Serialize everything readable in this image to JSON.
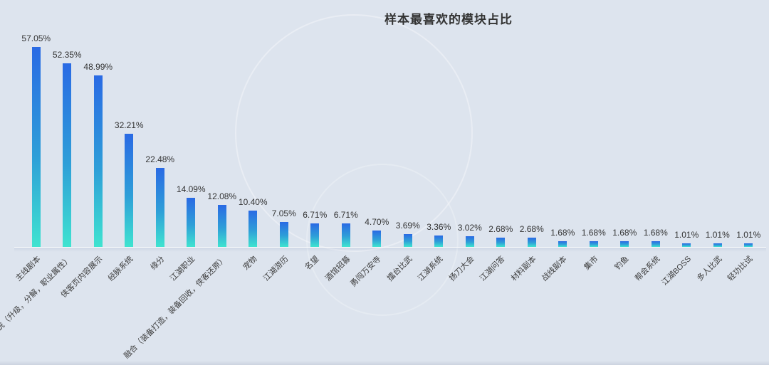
{
  "page": {
    "background": "#dde4ee"
  },
  "chart_data": {
    "type": "bar",
    "title": "样本最喜欢的模块占比",
    "categories": [
      "主线剧本",
      "侠客系统（升级，分解，职业属性）",
      "侠客页内容展示",
      "经脉系统",
      "缘分",
      "江湖职业",
      "融合（装备打造，装备回收，侠客还原）",
      "宠物",
      "江湖游历",
      "名望",
      "酒馆招募",
      "勇闯万安寺",
      "擂台比武",
      "江湖系统",
      "扬刀大会",
      "江湖问答",
      "材料副本",
      "战线副本",
      "集市",
      "钓鱼",
      "帮会系统",
      "江湖BOSS",
      "多人比武",
      "轻功比试"
    ],
    "values": [
      57.05,
      52.35,
      48.99,
      32.21,
      22.48,
      14.09,
      12.08,
      10.4,
      7.05,
      6.71,
      6.71,
      4.7,
      3.69,
      3.36,
      3.02,
      2.68,
      2.68,
      1.68,
      1.68,
      1.68,
      1.68,
      1.01,
      1.01,
      1.01
    ],
    "value_labels": [
      "57.05%",
      "52.35%",
      "48.99%",
      "32.21%",
      "22.48%",
      "14.09%",
      "12.08%",
      "10.40%",
      "7.05%",
      "6.71%",
      "6.71%",
      "4.70%",
      "3.69%",
      "3.36%",
      "3.02%",
      "2.68%",
      "2.68%",
      "1.68%",
      "1.68%",
      "1.68%",
      "1.68%",
      "1.01%",
      "1.01%",
      "1.01%"
    ],
    "xlabel": "",
    "ylabel": "",
    "ylim": [
      0,
      60
    ],
    "grid": false,
    "legend_shown": false,
    "colors": {
      "bar_top": "#2a6ae4",
      "bar_mid": "#2e9fd8",
      "bar_bottom": "#3fe3d0",
      "value_label": "#333333",
      "axis_label": "#3c3c3c",
      "title": "#333333",
      "axis_line": "#ffffff",
      "background": "#dde4ee"
    }
  }
}
